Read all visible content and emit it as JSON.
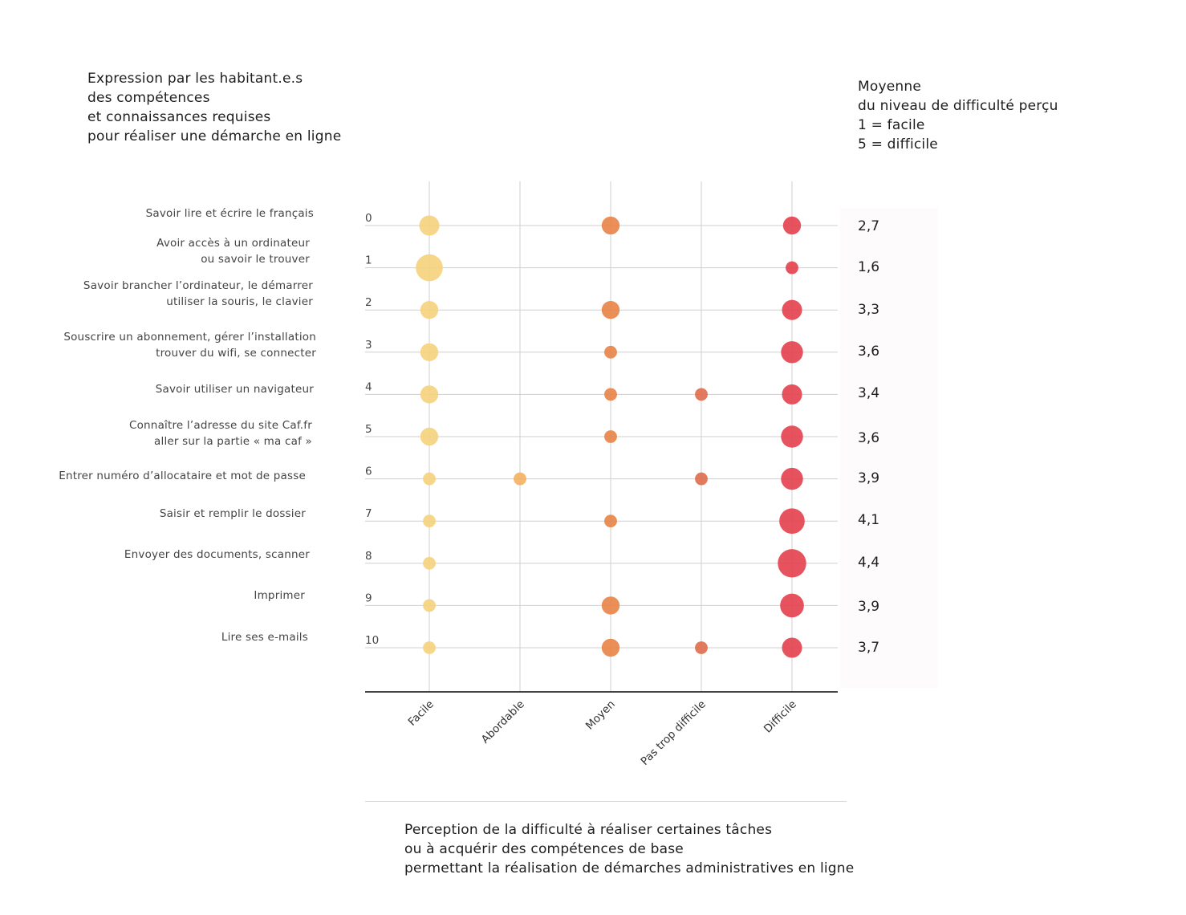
{
  "left_title": [
    "Expression par les habitant.e.s",
    "des compétences",
    "et connaissances requises",
    "pour réaliser une démarche en ligne"
  ],
  "right_title": [
    "Moyenne",
    "du niveau de difficulté perçu",
    "1 = facile",
    "5 = difficile"
  ],
  "bottom_title": [
    "Perception de la difficulté à réaliser certaines tâches",
    "ou à acquérir des compétences de base",
    "permettant la réalisation de démarches administratives en ligne"
  ],
  "colors": {
    "Facile": "#f5d27e",
    "Abordable": "#f5b162",
    "Moyen": "#e8864a",
    "Pas trop difficile": "#e0704f",
    "Difficile": "#e4434f"
  },
  "chart_data": {
    "type": "scatter",
    "x_categories": [
      "Facile",
      "Abordable",
      "Moyen",
      "Pas trop difficile",
      "Difficile"
    ],
    "y_ticks": [
      "0",
      "1",
      "2",
      "3",
      "4",
      "5",
      "6",
      "7",
      "8",
      "9",
      "10"
    ],
    "tasks": [
      [
        "Savoir lire et écrire le français"
      ],
      [
        "Avoir accès à un ordinateur",
        "ou savoir le trouver"
      ],
      [
        "Savoir brancher l’ordinateur, le démarrer",
        "utiliser la souris, le clavier"
      ],
      [
        "Souscrire un abonnement, gérer l’installation",
        "trouver du wifi, se connecter"
      ],
      [
        "Savoir  utiliser un navigateur"
      ],
      [
        "Connaître l’adresse du site Caf.fr",
        "aller sur la partie « ma caf »"
      ],
      [
        "Entrer numéro d’allocataire et mot de passe"
      ],
      [
        "Saisir et remplir le dossier"
      ],
      [
        "Envoyer des documents, scanner"
      ],
      [
        "Imprimer"
      ],
      [
        "Lire ses e-mails"
      ]
    ],
    "averages": [
      "2,7",
      "1,6",
      "3,3",
      "3,6",
      "3,4",
      "3,6",
      "3,9",
      "4,1",
      "4,4",
      "3,9",
      "3,7"
    ],
    "responses": [
      [
        5,
        0,
        4,
        0,
        4
      ],
      [
        9,
        0,
        0,
        0,
        2
      ],
      [
        4,
        0,
        4,
        0,
        5
      ],
      [
        4,
        0,
        2,
        0,
        6
      ],
      [
        4,
        0,
        2,
        2,
        5
      ],
      [
        4,
        0,
        2,
        0,
        6
      ],
      [
        2,
        2,
        0,
        2,
        6
      ],
      [
        2,
        0,
        2,
        0,
        8
      ],
      [
        2,
        0,
        0,
        0,
        10
      ],
      [
        2,
        0,
        4,
        0,
        7
      ],
      [
        2,
        0,
        4,
        2,
        5
      ]
    ]
  }
}
